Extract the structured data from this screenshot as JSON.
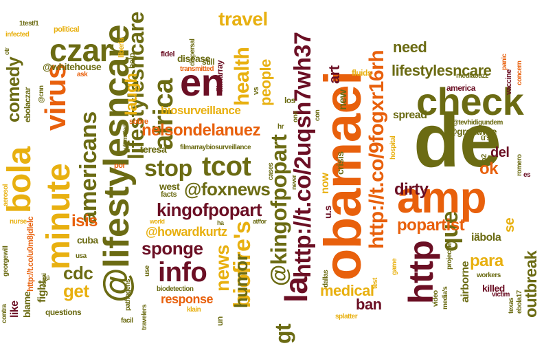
{
  "palette": {
    "olive": "#6b6b13",
    "orange": "#e8600c",
    "maroon": "#6b0f24",
    "gold": "#e8b010",
    "background": "#ffffff"
  },
  "words": [
    {
      "text": "de",
      "size": 110,
      "color": "olive",
      "rot": "h"
    },
    {
      "text": "obamaei",
      "size": 76,
      "color": "orange",
      "rot": "v"
    },
    {
      "text": "amp",
      "size": 64,
      "color": "orange",
      "rot": "h"
    },
    {
      "text": "check",
      "size": 56,
      "color": "olive",
      "rot": "h"
    },
    {
      "text": "@lifestylesncare",
      "size": 52,
      "color": "olive",
      "rot": "v"
    },
    {
      "text": "en",
      "size": 56,
      "color": "maroon",
      "rot": "h"
    },
    {
      "text": "http",
      "size": 50,
      "color": "maroon",
      "rot": "v"
    },
    {
      "text": "minute",
      "size": 48,
      "color": "gold",
      "rot": "v"
    },
    {
      "text": "virus",
      "size": 42,
      "color": "orange",
      "rot": "v"
    },
    {
      "text": "bola",
      "size": 48,
      "color": "gold",
      "rot": "v"
    },
    {
      "text": "la",
      "size": 46,
      "color": "maroon",
      "rot": "v"
    },
    {
      "text": "czar",
      "size": 46,
      "color": "olive",
      "rot": "h"
    },
    {
      "text": "africa",
      "size": 40,
      "color": "olive",
      "rot": "v"
    },
    {
      "text": "info",
      "size": 40,
      "color": "maroon",
      "rot": "h"
    },
    {
      "text": "tcot",
      "size": 40,
      "color": "olive",
      "rot": "h"
    },
    {
      "text": "http://t.co/2uqsh7wh37",
      "size": 34,
      "color": "maroon",
      "rot": "v"
    },
    {
      "text": "http://t.co/9fogxr16rh",
      "size": 30,
      "color": "orange",
      "rot": "v"
    },
    {
      "text": "biofire's",
      "size": 34,
      "color": "gold",
      "rot": "v"
    },
    {
      "text": "@kingofpopart",
      "size": 32,
      "color": "olive",
      "rot": "v"
    },
    {
      "text": "americans",
      "size": 34,
      "color": "olive",
      "rot": "v"
    },
    {
      "text": "stop",
      "size": 34,
      "color": "olive",
      "rot": "h"
    },
    {
      "text": "que",
      "size": 34,
      "color": "olive",
      "rot": "v"
    },
    {
      "text": "lifestylesncare",
      "size": 32,
      "color": "olive",
      "rot": "v"
    },
    {
      "text": "gt",
      "size": 32,
      "color": "olive",
      "rot": "v"
    },
    {
      "text": "health",
      "size": 30,
      "color": "gold",
      "rot": "v"
    },
    {
      "text": "travel",
      "size": 28,
      "color": "gold",
      "rot": "h"
    },
    {
      "text": "comedy",
      "size": 26,
      "color": "olive",
      "rot": "v"
    },
    {
      "text": "news",
      "size": 28,
      "color": "gold",
      "rot": "v"
    },
    {
      "text": "@foxnews",
      "size": 26,
      "color": "olive",
      "rot": "h"
    },
    {
      "text": "kingofpopart",
      "size": 26,
      "color": "maroon",
      "rot": "h"
    },
    {
      "text": "sponge",
      "size": 26,
      "color": "maroon",
      "rot": "h"
    },
    {
      "text": "humor",
      "size": 26,
      "color": "olive",
      "rot": "v"
    },
    {
      "text": "popartist",
      "size": 24,
      "color": "orange",
      "rot": "h"
    },
    {
      "text": "isis",
      "size": 24,
      "color": "orange",
      "rot": "h"
    },
    {
      "text": "cdc",
      "size": 26,
      "color": "olive",
      "rot": "h"
    },
    {
      "text": "get",
      "size": 26,
      "color": "gold",
      "rot": "h"
    },
    {
      "text": "nelsondelanuez",
      "size": 24,
      "color": "orange",
      "rot": "h"
    },
    {
      "text": "laugh",
      "size": 24,
      "color": "gold",
      "rot": "v"
    },
    {
      "text": "lifestylesncare",
      "size": 22,
      "color": "olive",
      "rot": "h"
    },
    {
      "text": "people",
      "size": 22,
      "color": "gold",
      "rot": "v"
    },
    {
      "text": "art",
      "size": 22,
      "color": "maroon",
      "rot": "v"
    },
    {
      "text": "outbreak",
      "size": 24,
      "color": "olive",
      "rot": "v"
    },
    {
      "text": "para",
      "size": 24,
      "color": "gold",
      "rot": "h"
    },
    {
      "text": "ok",
      "size": 24,
      "color": "orange",
      "rot": "h"
    },
    {
      "text": "dirty",
      "size": 24,
      "color": "maroon",
      "rot": "h"
    },
    {
      "text": "need",
      "size": 22,
      "color": "olive",
      "rot": "h"
    },
    {
      "text": "ban",
      "size": 22,
      "color": "maroon",
      "rot": "h"
    },
    {
      "text": "medical",
      "size": 22,
      "color": "gold",
      "rot": "h"
    },
    {
      "text": "del",
      "size": 20,
      "color": "maroon",
      "rot": "h"
    },
    {
      "text": "@howardkurtz",
      "size": 18,
      "color": "gold",
      "rot": "h"
    },
    {
      "text": "biosurveillance",
      "size": 17,
      "color": "gold",
      "rot": "h"
    },
    {
      "text": "response",
      "size": 18,
      "color": "orange",
      "rot": "h"
    },
    {
      "text": "@whitehouse",
      "size": 14,
      "color": "olive",
      "rot": "h"
    },
    {
      "text": "@gretawire",
      "size": 14,
      "color": "olive",
      "rot": "h"
    },
    {
      "text": "iäbola",
      "size": 16,
      "color": "olive",
      "rot": "h"
    },
    {
      "text": "se",
      "size": 20,
      "color": "gold",
      "rot": "v"
    },
    {
      "text": "spread",
      "size": 16,
      "color": "olive",
      "rot": "h"
    },
    {
      "text": "now",
      "size": 16,
      "color": "gold",
      "rot": "v"
    },
    {
      "text": "new",
      "size": 16,
      "color": "olive",
      "rot": "v"
    },
    {
      "text": "crisis",
      "size": 14,
      "color": "olive",
      "rot": "v"
    },
    {
      "text": "u.s",
      "size": 14,
      "color": "maroon",
      "rot": "v"
    },
    {
      "text": "disease",
      "size": 14,
      "color": "olive",
      "rot": "h"
    },
    {
      "text": "airborne",
      "size": 16,
      "color": "olive",
      "rot": "v"
    },
    {
      "text": "killed",
      "size": 14,
      "color": "maroon",
      "rot": "h"
    },
    {
      "text": "like",
      "size": 16,
      "color": "maroon",
      "rot": "v"
    },
    {
      "text": "fight",
      "size": 16,
      "color": "olive",
      "rot": "v"
    },
    {
      "text": "blame",
      "size": 14,
      "color": "olive",
      "rot": "v"
    },
    {
      "text": "questions",
      "size": 12,
      "color": "olive",
      "rot": "h"
    },
    {
      "text": "cuba",
      "size": 14,
      "color": "olive",
      "rot": "h"
    },
    {
      "text": "west",
      "size": 14,
      "color": "olive",
      "rot": "h"
    },
    {
      "text": "teresa",
      "size": 14,
      "color": "olive",
      "rot": "h"
    },
    {
      "text": "america",
      "size": 12,
      "color": "maroon",
      "rot": "h"
    },
    {
      "text": "filmarray",
      "size": 12,
      "color": "maroon",
      "rot": "v"
    },
    {
      "text": "fluids",
      "size": 12,
      "color": "gold",
      "rot": "h"
    },
    {
      "text": "vaccine",
      "size": 11,
      "color": "maroon",
      "rot": "v"
    },
    {
      "text": "mediabuzz",
      "size": 10,
      "color": "olive",
      "rot": "h"
    },
    {
      "text": "http://t.co/u0m8jdlelc",
      "size": 12,
      "color": "orange",
      "rot": "v"
    },
    {
      "text": "ebolaczar",
      "size": 12,
      "color": "olive",
      "rot": "v"
    },
    {
      "text": "infected",
      "size": 10,
      "color": "gold",
      "rot": "h"
    },
    {
      "text": "1test/1",
      "size": 10,
      "color": "olive",
      "rot": "h"
    },
    {
      "text": "political",
      "size": 11,
      "color": "gold",
      "rot": "h"
    },
    {
      "text": "liberia",
      "size": 11,
      "color": "gold",
      "rot": "v"
    },
    {
      "text": "help",
      "size": 12,
      "color": "olive",
      "rot": "v"
    },
    {
      "text": "fidel",
      "size": 11,
      "color": "maroon",
      "rot": "h"
    },
    {
      "text": "dispersal",
      "size": 10,
      "color": "olive",
      "rot": "v"
    },
    {
      "text": "still",
      "size": 12,
      "color": "olive",
      "rot": "h"
    },
    {
      "text": "transmitted",
      "size": 10,
      "color": "orange",
      "rot": "h"
    },
    {
      "text": "ask",
      "size": 10,
      "color": "orange",
      "rot": "h"
    },
    {
      "text": "@cnn",
      "size": 10,
      "color": "olive",
      "rot": "v"
    },
    {
      "text": "por",
      "size": 11,
      "color": "orange",
      "rot": "h"
    },
    {
      "text": "sobre",
      "size": 11,
      "color": "orange",
      "rot": "h"
    },
    {
      "text": "automated",
      "size": 9,
      "color": "olive",
      "rot": "v"
    },
    {
      "text": "filmarraybiosurveillance",
      "size": 10,
      "color": "olive",
      "rot": "h"
    },
    {
      "text": "vs",
      "size": 11,
      "color": "olive",
      "rot": "v"
    },
    {
      "text": "los",
      "size": 12,
      "color": "olive",
      "rot": "h"
    },
    {
      "text": "one",
      "size": 10,
      "color": "olive",
      "rot": "v"
    },
    {
      "text": "con",
      "size": 10,
      "color": "olive",
      "rot": "v"
    },
    {
      "text": "hr",
      "size": 10,
      "color": "olive",
      "rot": "h"
    },
    {
      "text": "facts",
      "size": 11,
      "color": "olive",
      "rot": "h"
    },
    {
      "text": "cases",
      "size": 10,
      "color": "olive",
      "rot": "v"
    },
    {
      "text": "never",
      "size": 9,
      "color": "olive",
      "rot": "v"
    },
    {
      "text": "ha",
      "size": 9,
      "color": "olive",
      "rot": "h"
    },
    {
      "text": "at/for",
      "size": 9,
      "color": "olive",
      "rot": "h"
    },
    {
      "text": "world",
      "size": 9,
      "color": "gold",
      "rot": "h"
    },
    {
      "text": "test",
      "size": 10,
      "color": "gold",
      "rot": "v"
    },
    {
      "text": "hospital",
      "size": 10,
      "color": "gold",
      "rot": "v"
    },
    {
      "text": "game",
      "size": 10,
      "color": "gold",
      "rot": "v"
    },
    {
      "text": "dallas",
      "size": 10,
      "color": "olive",
      "rot": "v"
    },
    {
      "text": "projectile",
      "size": 10,
      "color": "olive",
      "rot": "v"
    },
    {
      "text": "splatter",
      "size": 10,
      "color": "gold",
      "rot": "h"
    },
    {
      "text": "video",
      "size": 10,
      "color": "olive",
      "rot": "v"
    },
    {
      "text": "media's",
      "size": 10,
      "color": "olive",
      "rot": "v"
    },
    {
      "text": "workers",
      "size": 10,
      "color": "olive",
      "rot": "h"
    },
    {
      "text": "victim",
      "size": 10,
      "color": "maroon",
      "rot": "h"
    },
    {
      "text": "texas",
      "size": 10,
      "color": "olive",
      "rot": "v"
    },
    {
      "text": "ebola17",
      "size": 10,
      "color": "olive",
      "rot": "v"
    },
    {
      "text": "panic",
      "size": 10,
      "color": "orange",
      "rot": "v"
    },
    {
      "text": "concern",
      "size": 10,
      "color": "orange",
      "rot": "v"
    },
    {
      "text": "@tevhidigundem",
      "size": 10,
      "color": "olive",
      "rot": "h"
    },
    {
      "text": "ü's",
      "size": 11,
      "color": "olive",
      "rot": "h"
    },
    {
      "text": "ü",
      "size": 11,
      "color": "olive",
      "rot": "h"
    },
    {
      "text": "p2",
      "size": 11,
      "color": "olive",
      "rot": "v"
    },
    {
      "text": "romero",
      "size": 10,
      "color": "olive",
      "rot": "v"
    },
    {
      "text": "es",
      "size": 10,
      "color": "maroon",
      "rot": "h"
    },
    {
      "text": "georgewill",
      "size": 10,
      "color": "olive",
      "rot": "v"
    },
    {
      "text": "nurse",
      "size": 10,
      "color": "gold",
      "rot": "h"
    },
    {
      "text": "aerosol",
      "size": 10,
      "color": "gold",
      "rot": "v"
    },
    {
      "text": "espai",
      "size": 9,
      "color": "olive",
      "rot": "v"
    },
    {
      "text": "usa",
      "size": 10,
      "color": "olive",
      "rot": "h"
    },
    {
      "text": "ùü",
      "size": 9,
      "color": "olive",
      "rot": "h"
    },
    {
      "text": "contra",
      "size": 10,
      "color": "olive",
      "rot": "v"
    },
    {
      "text": "pathogens",
      "size": 10,
      "color": "olive",
      "rot": "v"
    },
    {
      "text": "biodetection",
      "size": 10,
      "color": "olive",
      "rot": "h"
    },
    {
      "text": "use",
      "size": 10,
      "color": "olive",
      "rot": "v"
    },
    {
      "text": "travelers",
      "size": 10,
      "color": "olive",
      "rot": "v"
    },
    {
      "text": "facil",
      "size": 10,
      "color": "olive",
      "rot": "h"
    },
    {
      "text": "klain",
      "size": 10,
      "color": "gold",
      "rot": "h"
    },
    {
      "text": "un",
      "size": 12,
      "color": "olive",
      "rot": "v"
    },
    {
      "text": "otr",
      "size": 9,
      "color": "olive",
      "rot": "v"
    }
  ]
}
